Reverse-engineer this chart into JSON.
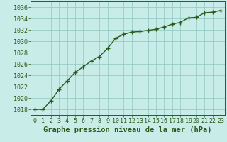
{
  "x": [
    0,
    1,
    2,
    3,
    4,
    5,
    6,
    7,
    8,
    9,
    10,
    11,
    12,
    13,
    14,
    15,
    16,
    17,
    18,
    19,
    20,
    21,
    22,
    23
  ],
  "y": [
    1018.0,
    1018.0,
    1019.5,
    1021.5,
    1023.0,
    1024.5,
    1025.5,
    1026.5,
    1027.3,
    1028.7,
    1030.5,
    1031.2,
    1031.6,
    1031.7,
    1031.9,
    1032.1,
    1032.5,
    1033.0,
    1033.3,
    1034.1,
    1034.2,
    1035.0,
    1035.1,
    1035.4
  ],
  "line_color": "#2d5a1b",
  "marker": "+",
  "marker_size": 4,
  "line_width": 1.0,
  "bg_color": "#c8ece8",
  "grid_color": "#8ec8c0",
  "ylim": [
    1017,
    1037
  ],
  "xlim": [
    -0.5,
    23.5
  ],
  "yticks": [
    1018,
    1020,
    1022,
    1024,
    1026,
    1028,
    1030,
    1032,
    1034,
    1036
  ],
  "xticks": [
    0,
    1,
    2,
    3,
    4,
    5,
    6,
    7,
    8,
    9,
    10,
    11,
    12,
    13,
    14,
    15,
    16,
    17,
    18,
    19,
    20,
    21,
    22,
    23
  ],
  "xlabel": "Graphe pression niveau de la mer (hPa)",
  "xlabel_fontsize": 7.5,
  "tick_fontsize": 6.0,
  "tick_color": "#2d5a1b",
  "label_color": "#2d5a1b",
  "spine_color": "#2d5a1b",
  "markeredgewidth": 1.0
}
